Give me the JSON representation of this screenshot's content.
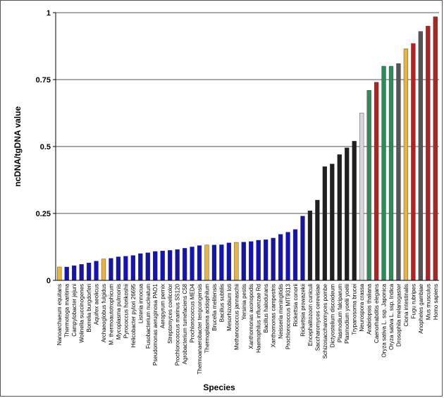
{
  "chart_data": {
    "type": "bar",
    "title": "",
    "xlabel": "Species",
    "ylabel": "ncDNA/tgDNA value",
    "ylim": [
      0,
      1
    ],
    "yticks": [
      0,
      0.25,
      0.5,
      0.75,
      1
    ],
    "ytick_labels": [
      "0",
      "0.25",
      "0.5",
      "0.75",
      "1"
    ],
    "grid": "horizontal",
    "legend": "none",
    "colors": {
      "blue": "#1414b4",
      "gold": "#e8b43c",
      "black": "#202020",
      "light_gray": "#d8d8d8",
      "green": "#2e8b57",
      "dark_gray": "#555555",
      "red": "#b22222"
    },
    "categories": [
      "Nanoarchaeum equitans",
      "Thermotoga maritima",
      "Campylobacter jejuni",
      "Wolinella succinogenes",
      "Borrelia burgdorferi",
      "Aquifex aeolicus",
      "Archaeoglobus fulgidus",
      "M. thermoautotrophicum",
      "Mycoplasma pulmonis",
      "Pyrococcus horikoshii",
      "Helicobacter pylori 26695",
      "Listeria innocua",
      "Fusobacterium nucleatum",
      "Pseudomonas aeruginosa PAO1",
      "Aeropyrum pernix",
      "Streptomyces coelicolor",
      "Prochlorococcus marinus SS120",
      "Agrobacterium tumefaciens C58",
      "Prochlorococcus MED4",
      "Thermoanaerobacter tengcongensis",
      "Thermoplasma acidophilum",
      "Brucella melitensis",
      "Bacillus subtilis",
      "Mesorhizobium loti",
      "Methanococcus jannaschii",
      "Yersinia pestis",
      "Xanthomonas axonopodis",
      "Haemophilus influenzae Rd",
      "Bacillus halodurans",
      "Xanthomonas campestris",
      "Neisseria meningitidis",
      "Prochlorococcus MIT9313",
      "Rickettsia conorii",
      "Rickettsia prowazekii",
      "Encephalitozoon cuniculi",
      "Saccharomyces cerevisiae",
      "Schizosaccharomyces pombe",
      "Dictyostelium discoideum",
      "Plasmodium falciparum",
      "Plasmodium yoelii yoelii",
      "Trypanosoma brucei",
      "Neurospora crassa",
      "Arabidopsis thaliana",
      "Caenorhabditis elegans",
      "Oryza sativa L. ssp. Japonica",
      "Oryza sativa L. ssp. Indica",
      "Drosophila melanogaster",
      "Ciona intestinalis",
      "Fugu rubripes",
      "Anopheles gambiae",
      "Mus musculus",
      "Homo sapiens"
    ],
    "values": [
      0.05,
      0.05,
      0.055,
      0.06,
      0.065,
      0.072,
      0.08,
      0.082,
      0.088,
      0.09,
      0.093,
      0.1,
      0.103,
      0.108,
      0.11,
      0.112,
      0.115,
      0.12,
      0.125,
      0.13,
      0.132,
      0.132,
      0.133,
      0.14,
      0.142,
      0.143,
      0.145,
      0.15,
      0.152,
      0.158,
      0.172,
      0.18,
      0.19,
      0.24,
      0.26,
      0.3,
      0.425,
      0.435,
      0.47,
      0.495,
      0.52,
      0.625,
      0.71,
      0.74,
      0.8,
      0.8,
      0.81,
      0.865,
      0.885,
      0.93,
      0.95,
      0.985
    ],
    "bar_colors": [
      "gold",
      "blue",
      "blue",
      "blue",
      "blue",
      "blue",
      "gold",
      "blue",
      "blue",
      "blue",
      "blue",
      "blue",
      "blue",
      "blue",
      "blue",
      "blue",
      "blue",
      "blue",
      "blue",
      "blue",
      "gold",
      "blue",
      "blue",
      "blue",
      "gold",
      "blue",
      "blue",
      "blue",
      "blue",
      "blue",
      "blue",
      "blue",
      "blue",
      "blue",
      "black",
      "black",
      "black",
      "black",
      "black",
      "black",
      "black",
      "light_gray",
      "green",
      "red",
      "green",
      "green",
      "dark_gray",
      "gold",
      "red",
      "dark_gray",
      "red",
      "red"
    ]
  }
}
